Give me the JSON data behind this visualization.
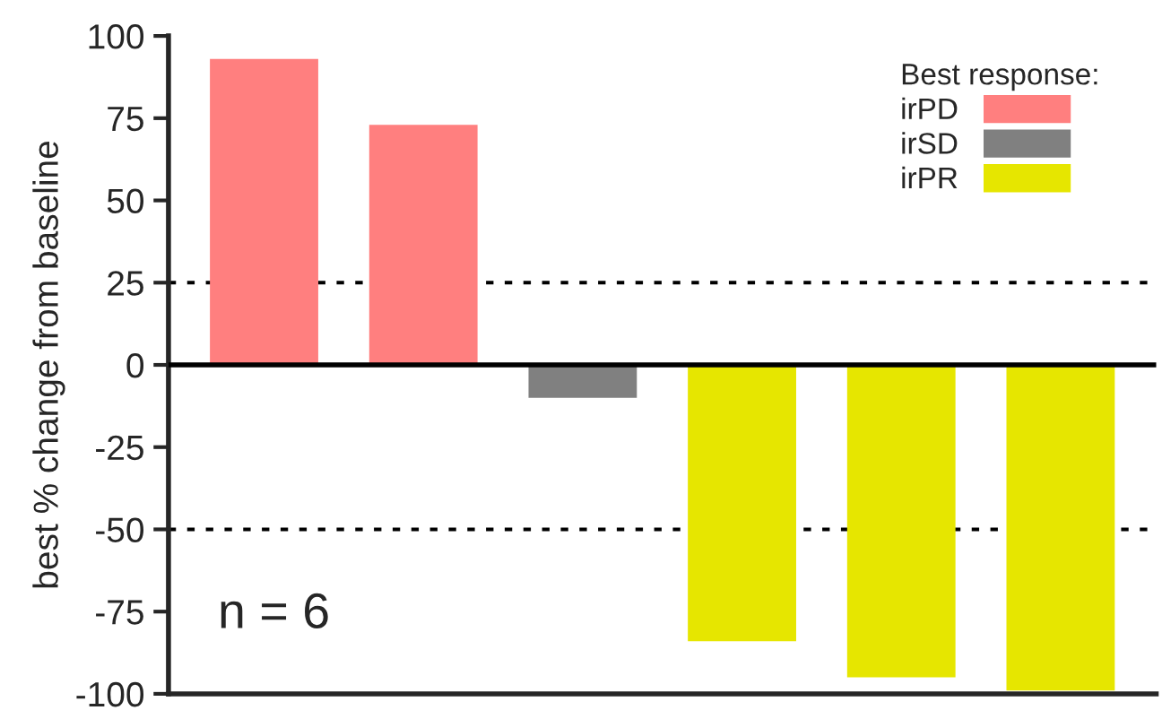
{
  "chart_data": {
    "type": "bar",
    "ylabel": "best % change from baseline",
    "categories": [
      null,
      null,
      null,
      null,
      null,
      null
    ],
    "series": [
      {
        "name": "irPD",
        "color": "#ff7f7f",
        "values": [
          93,
          73,
          null,
          null,
          null,
          null
        ]
      },
      {
        "name": "irSD",
        "color": "#808080",
        "values": [
          null,
          null,
          -10,
          null,
          null,
          null
        ]
      },
      {
        "name": "irPR",
        "color": "#e6e600",
        "values": [
          null,
          null,
          null,
          -84,
          -95,
          -99
        ]
      }
    ],
    "ylim": [
      -100,
      100
    ],
    "yticks": [
      -100,
      -75,
      -50,
      -25,
      0,
      25,
      50,
      75,
      100
    ],
    "ref_lines": [
      {
        "axis": "y",
        "value": 25,
        "line_style": "dotted",
        "color": "#000000"
      },
      {
        "axis": "y",
        "value": -50,
        "line_style": "dotted",
        "color": "#000000"
      },
      {
        "axis": "y",
        "value": 0,
        "line_style": "solid",
        "color": "#000000"
      }
    ],
    "legend": "top right",
    "legend_title": "Best response:",
    "annotations": [
      "n = 6"
    ],
    "grid": false
  }
}
